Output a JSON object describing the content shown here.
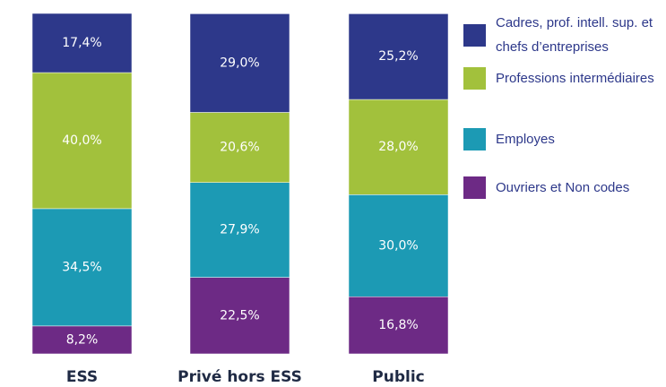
{
  "chart_data": {
    "type": "stacked_bar",
    "categories": [
      "ESS",
      "Privé hors ESS",
      "Public"
    ],
    "series": [
      {
        "name": "Ouvriers et Non codes",
        "color": "#6d2a85",
        "values": [
          8.2,
          22.5,
          16.8
        ],
        "value_labels": [
          "8,2%",
          "22,5%",
          "16,8%"
        ]
      },
      {
        "name": "Employes",
        "color": "#1c9ab4",
        "values": [
          34.5,
          27.9,
          30.0
        ],
        "value_labels": [
          "34,5%",
          "27,9%",
          "30,0%"
        ]
      },
      {
        "name": "Professions intermédiaires",
        "color": "#a2c13c",
        "values": [
          40.0,
          20.6,
          28.0
        ],
        "value_labels": [
          "40,0%",
          "20,6%",
          "28,0%"
        ]
      },
      {
        "name": "Cadres, prof. intell. sup. et chefs d’entreprises",
        "color": "#2d388a",
        "values": [
          17.4,
          29.0,
          25.2
        ],
        "value_labels": [
          "17,4%",
          "29,0%",
          "25,2%"
        ]
      }
    ]
  }
}
